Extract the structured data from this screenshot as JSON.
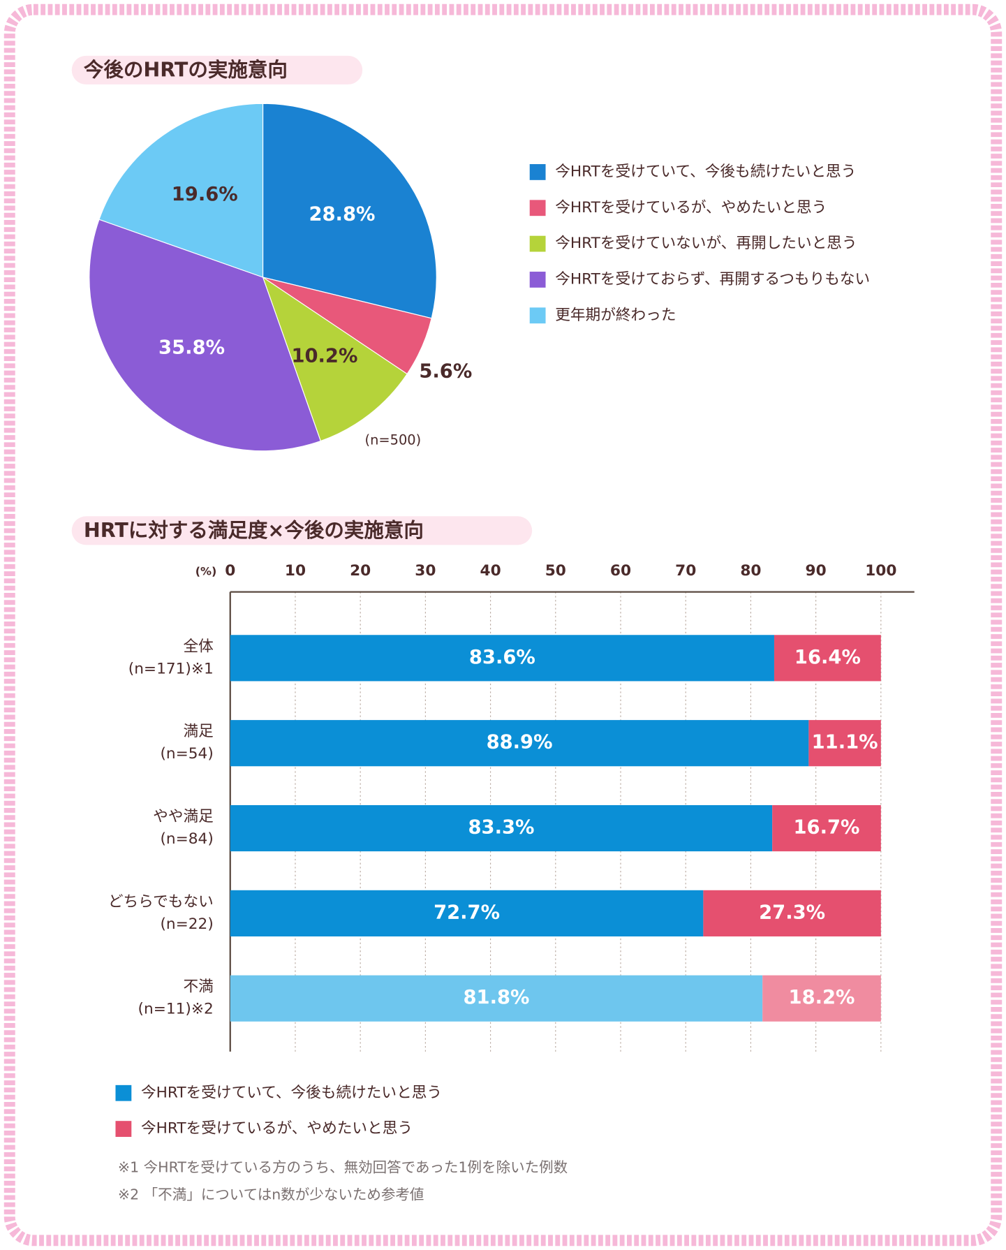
{
  "chart_data": [
    {
      "type": "pie",
      "title": "今後のHRTの実施意向",
      "note": "(n=500)",
      "categories": [
        "今HRTを受けていて、今後も続けたいと思う",
        "今HRTを受けているが、やめたいと思う",
        "今HRTを受けていないが、再開したいと思う",
        "今HRTを受けておらず、再開するつもりもない",
        "更年期が終わった"
      ],
      "values": [
        28.8,
        5.6,
        10.2,
        35.8,
        19.6
      ],
      "value_labels": [
        "28.8%",
        "5.6%",
        "10.2%",
        "35.8%",
        "19.6%"
      ],
      "colors": [
        "#1a82d2",
        "#e8587a",
        "#b5d33a",
        "#8b5cd6",
        "#6ccaf5"
      ],
      "legend": "right"
    },
    {
      "type": "stacked_barh",
      "title": "HRTに対する満足度×今後の実施意向",
      "xlabel": "(%)",
      "categories": [
        [
          "全体",
          "(n=171)※1"
        ],
        [
          "満足",
          "(n=54)"
        ],
        [
          "やや満足",
          "(n=84)"
        ],
        [
          "どちらでもない",
          "(n=22)"
        ],
        [
          "不満",
          "(n=11)※2"
        ]
      ],
      "xlim": [
        0,
        100
      ],
      "xticks": [
        0,
        10,
        20,
        30,
        40,
        50,
        60,
        70,
        80,
        90,
        100
      ],
      "grid": true,
      "legend": "bottom",
      "series": [
        {
          "name": "今HRTを受けていて、今後も続けたいと思う",
          "color": "#0b8fd6",
          "colors": [
            "#0b8fd6",
            "#0b8fd6",
            "#0b8fd6",
            "#0b8fd6",
            "#6ec6ee"
          ],
          "values": [
            83.6,
            88.9,
            83.3,
            72.7,
            81.8
          ],
          "value_labels": [
            "83.6%",
            "88.9%",
            "83.3%",
            "72.7%",
            "81.8%"
          ]
        },
        {
          "name": "今HRTを受けているが、やめたいと思う",
          "color": "#e5506f",
          "colors": [
            "#e5506f",
            "#e5506f",
            "#e5506f",
            "#e5506f",
            "#f08ca0"
          ],
          "values": [
            16.4,
            11.1,
            16.7,
            27.3,
            18.2
          ],
          "value_labels": [
            "16.4%",
            "11.1%",
            "16.7%",
            "27.3%",
            "18.2%"
          ]
        }
      ],
      "notes": [
        "※1 今HRTを受けている方のうち、無効回答であった1例を除いた例数",
        "※2 「不満」についてはn数が少ないため参考値"
      ]
    }
  ]
}
